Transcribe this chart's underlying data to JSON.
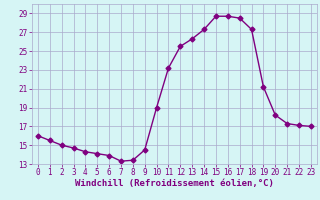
{
  "x": [
    0,
    1,
    2,
    3,
    4,
    5,
    6,
    7,
    8,
    9,
    10,
    11,
    12,
    13,
    14,
    15,
    16,
    17,
    18,
    19,
    20,
    21,
    22,
    23
  ],
  "y": [
    16,
    15.5,
    15,
    14.7,
    14.3,
    14.1,
    13.9,
    13.3,
    13.4,
    14.5,
    19.0,
    23.2,
    25.5,
    26.3,
    27.3,
    28.7,
    28.7,
    28.5,
    27.3,
    21.2,
    18.2,
    17.3,
    17.1,
    17.0
  ],
  "line_color": "#800080",
  "marker": "D",
  "marker_size": 2.5,
  "bg_color": "#d6f5f5",
  "grid_color": "#aaaacc",
  "xlabel": "Windchill (Refroidissement éolien,°C)",
  "xlabel_color": "#800080",
  "tick_color": "#800080",
  "ylim": [
    13,
    30
  ],
  "xlim": [
    -0.5,
    23.5
  ],
  "yticks": [
    13,
    15,
    17,
    19,
    21,
    23,
    25,
    27,
    29
  ],
  "xticks": [
    0,
    1,
    2,
    3,
    4,
    5,
    6,
    7,
    8,
    9,
    10,
    11,
    12,
    13,
    14,
    15,
    16,
    17,
    18,
    19,
    20,
    21,
    22,
    23
  ],
  "xlabel_fontsize": 6.5,
  "tick_fontsize": 5.5,
  "line_width": 1.0
}
